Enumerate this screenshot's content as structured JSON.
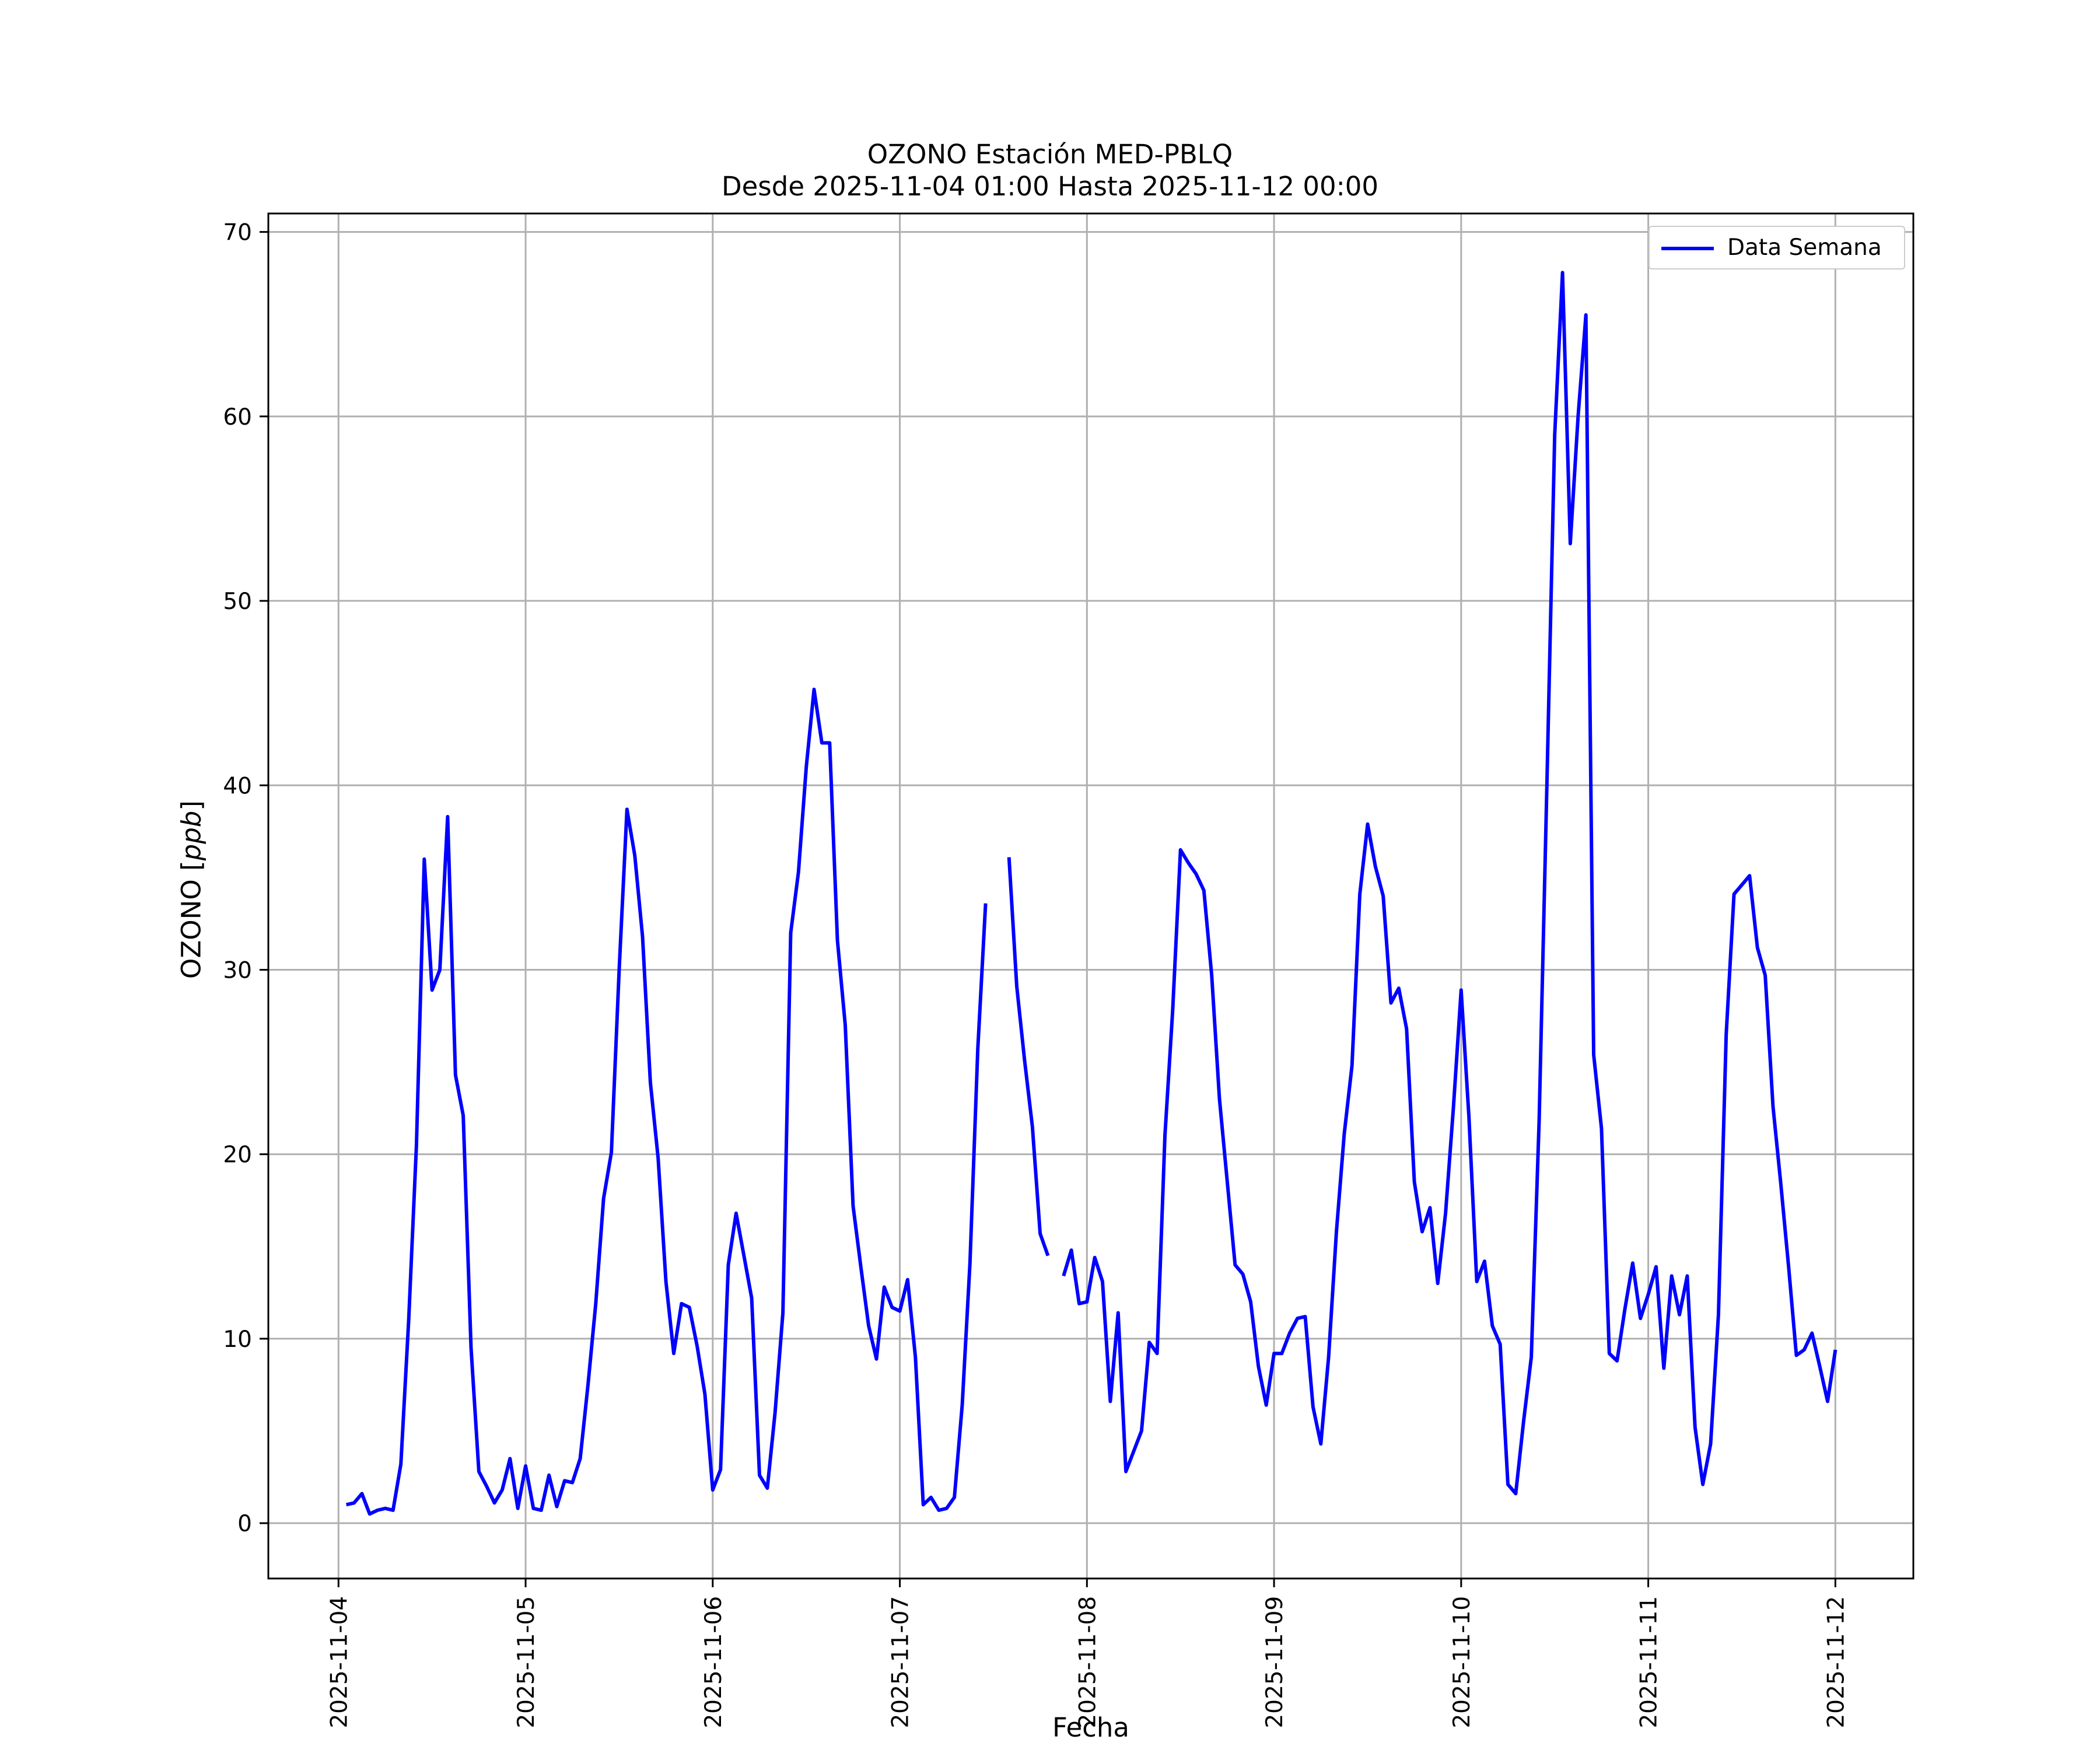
{
  "chart_data": {
    "type": "line",
    "title": "OZONO Estación MED-PBLQ",
    "subtitle": "Desde 2025-11-04 01:00 Hasta 2025-11-12 00:00",
    "xlabel": "Fecha",
    "ylabel": "OZONO",
    "ylabel_unit": "ppb",
    "xlim": [
      "2025-11-03 15:00",
      "2025-11-12 10:00"
    ],
    "ylim": [
      -3,
      71
    ],
    "xticks": [
      "2025-11-04",
      "2025-11-05",
      "2025-11-06",
      "2025-11-07",
      "2025-11-08",
      "2025-11-09",
      "2025-11-10",
      "2025-11-11",
      "2025-11-12"
    ],
    "yticks": [
      0,
      10,
      20,
      30,
      40,
      50,
      60,
      70
    ],
    "grid": true,
    "legend_position": "top-right",
    "line_color": "#0000ff",
    "series": [
      {
        "name": "Data Semana",
        "segments": [
          [
            [
              "2025-11-04 01:00",
              1.0
            ],
            [
              "2025-11-04 02:00",
              1.1
            ],
            [
              "2025-11-04 03:00",
              1.6
            ],
            [
              "2025-11-04 04:00",
              0.5
            ],
            [
              "2025-11-04 05:00",
              0.7
            ],
            [
              "2025-11-04 06:00",
              0.8
            ],
            [
              "2025-11-04 07:00",
              0.7
            ],
            [
              "2025-11-04 08:00",
              3.2
            ],
            [
              "2025-11-04 09:00",
              11.0
            ],
            [
              "2025-11-04 10:00",
              20.5
            ],
            [
              "2025-11-04 11:00",
              36.0
            ],
            [
              "2025-11-04 12:00",
              28.9
            ],
            [
              "2025-11-04 13:00",
              30.0
            ],
            [
              "2025-11-04 14:00",
              38.3
            ],
            [
              "2025-11-04 15:00",
              24.3
            ],
            [
              "2025-11-04 16:00",
              22.1
            ],
            [
              "2025-11-04 17:00",
              9.5
            ],
            [
              "2025-11-04 18:00",
              2.8
            ],
            [
              "2025-11-04 19:00",
              2.0
            ],
            [
              "2025-11-04 20:00",
              1.1
            ],
            [
              "2025-11-04 21:00",
              1.8
            ],
            [
              "2025-11-04 22:00",
              3.5
            ],
            [
              "2025-11-04 23:00",
              0.8
            ],
            [
              "2025-11-05 00:00",
              3.1
            ],
            [
              "2025-11-05 01:00",
              0.8
            ],
            [
              "2025-11-05 02:00",
              0.7
            ],
            [
              "2025-11-05 03:00",
              2.6
            ],
            [
              "2025-11-05 04:00",
              0.9
            ],
            [
              "2025-11-05 05:00",
              2.3
            ],
            [
              "2025-11-05 06:00",
              2.2
            ],
            [
              "2025-11-05 07:00",
              3.5
            ],
            [
              "2025-11-05 08:00",
              7.5
            ],
            [
              "2025-11-05 09:00",
              11.9
            ],
            [
              "2025-11-05 10:00",
              17.6
            ],
            [
              "2025-11-05 11:00",
              20.1
            ],
            [
              "2025-11-05 12:00",
              30.0
            ],
            [
              "2025-11-05 13:00",
              38.7
            ],
            [
              "2025-11-05 14:00",
              36.2
            ],
            [
              "2025-11-05 15:00",
              31.8
            ],
            [
              "2025-11-05 16:00",
              23.9
            ],
            [
              "2025-11-05 17:00",
              19.8
            ],
            [
              "2025-11-05 18:00",
              13.1
            ],
            [
              "2025-11-05 19:00",
              9.2
            ],
            [
              "2025-11-05 20:00",
              11.9
            ],
            [
              "2025-11-05 21:00",
              11.7
            ],
            [
              "2025-11-05 22:00",
              9.6
            ],
            [
              "2025-11-05 23:00",
              7.0
            ],
            [
              "2025-11-06 00:00",
              1.8
            ],
            [
              "2025-11-06 01:00",
              2.9
            ],
            [
              "2025-11-06 02:00",
              14.0
            ],
            [
              "2025-11-06 03:00",
              16.8
            ],
            [
              "2025-11-06 04:00",
              14.5
            ],
            [
              "2025-11-06 05:00",
              12.2
            ],
            [
              "2025-11-06 06:00",
              2.6
            ],
            [
              "2025-11-06 07:00",
              1.9
            ],
            [
              "2025-11-06 08:00",
              6.0
            ],
            [
              "2025-11-06 09:00",
              11.4
            ],
            [
              "2025-11-06 10:00",
              32.0
            ],
            [
              "2025-11-06 11:00",
              35.3
            ],
            [
              "2025-11-06 12:00",
              41.0
            ],
            [
              "2025-11-06 13:00",
              45.2
            ],
            [
              "2025-11-06 14:00",
              42.3
            ],
            [
              "2025-11-06 15:00",
              42.3
            ],
            [
              "2025-11-06 16:00",
              31.6
            ],
            [
              "2025-11-06 17:00",
              27.0
            ],
            [
              "2025-11-06 18:00",
              17.2
            ],
            [
              "2025-11-06 19:00",
              13.9
            ],
            [
              "2025-11-06 20:00",
              10.7
            ],
            [
              "2025-11-06 21:00",
              8.9
            ],
            [
              "2025-11-06 22:00",
              12.8
            ],
            [
              "2025-11-06 23:00",
              11.7
            ],
            [
              "2025-11-07 00:00",
              11.5
            ],
            [
              "2025-11-07 01:00",
              13.2
            ],
            [
              "2025-11-07 02:00",
              9.0
            ],
            [
              "2025-11-07 03:00",
              1.0
            ],
            [
              "2025-11-07 04:00",
              1.4
            ],
            [
              "2025-11-07 05:00",
              0.7
            ],
            [
              "2025-11-07 06:00",
              0.8
            ],
            [
              "2025-11-07 07:00",
              1.4
            ],
            [
              "2025-11-07 08:00",
              6.4
            ],
            [
              "2025-11-07 09:00",
              14.1
            ],
            [
              "2025-11-07 10:00",
              25.7
            ],
            [
              "2025-11-07 11:00",
              33.6
            ]
          ],
          [
            [
              "2025-11-07 14:00",
              36.1
            ],
            [
              "2025-11-07 15:00",
              29.1
            ],
            [
              "2025-11-07 16:00",
              25.1
            ],
            [
              "2025-11-07 17:00",
              21.5
            ],
            [
              "2025-11-07 18:00",
              15.7
            ],
            [
              "2025-11-07 19:00",
              14.5
            ]
          ],
          [
            [
              "2025-11-07 21:00",
              13.4
            ],
            [
              "2025-11-07 22:00",
              14.8
            ],
            [
              "2025-11-07 23:00",
              11.9
            ],
            [
              "2025-11-08 00:00",
              12.0
            ],
            [
              "2025-11-08 01:00",
              14.4
            ],
            [
              "2025-11-08 02:00",
              13.1
            ],
            [
              "2025-11-08 03:00",
              6.6
            ],
            [
              "2025-11-08 04:00",
              11.4
            ],
            [
              "2025-11-08 05:00",
              2.8
            ],
            [
              "2025-11-08 06:00",
              3.9
            ],
            [
              "2025-11-08 07:00",
              5.0
            ],
            [
              "2025-11-08 08:00",
              9.8
            ],
            [
              "2025-11-08 09:00",
              9.2
            ],
            [
              "2025-11-08 10:00",
              21.0
            ],
            [
              "2025-11-08 11:00",
              27.8
            ],
            [
              "2025-11-08 12:00",
              36.5
            ],
            [
              "2025-11-08 13:00",
              35.8
            ],
            [
              "2025-11-08 14:00",
              35.2
            ],
            [
              "2025-11-08 15:00",
              34.3
            ],
            [
              "2025-11-08 16:00",
              29.7
            ],
            [
              "2025-11-08 17:00",
              23.0
            ],
            [
              "2025-11-08 18:00",
              18.5
            ],
            [
              "2025-11-08 19:00",
              14.0
            ],
            [
              "2025-11-08 20:00",
              13.5
            ],
            [
              "2025-11-08 21:00",
              12.0
            ],
            [
              "2025-11-08 22:00",
              8.5
            ],
            [
              "2025-11-08 23:00",
              6.4
            ],
            [
              "2025-11-09 00:00",
              9.2
            ],
            [
              "2025-11-09 01:00",
              9.2
            ],
            [
              "2025-11-09 02:00",
              10.3
            ],
            [
              "2025-11-09 03:00",
              11.1
            ],
            [
              "2025-11-09 04:00",
              11.2
            ],
            [
              "2025-11-09 05:00",
              6.3
            ],
            [
              "2025-11-09 06:00",
              4.3
            ],
            [
              "2025-11-09 07:00",
              9.0
            ],
            [
              "2025-11-09 08:00",
              15.8
            ],
            [
              "2025-11-09 09:00",
              21.1
            ],
            [
              "2025-11-09 10:00",
              24.8
            ],
            [
              "2025-11-09 11:00",
              34.1
            ],
            [
              "2025-11-09 12:00",
              37.9
            ],
            [
              "2025-11-09 13:00",
              35.6
            ],
            [
              "2025-11-09 14:00",
              34.0
            ],
            [
              "2025-11-09 15:00",
              28.2
            ],
            [
              "2025-11-09 16:00",
              29.0
            ],
            [
              "2025-11-09 17:00",
              26.8
            ],
            [
              "2025-11-09 18:00",
              18.5
            ],
            [
              "2025-11-09 19:00",
              15.8
            ],
            [
              "2025-11-09 20:00",
              17.1
            ],
            [
              "2025-11-09 21:00",
              13.0
            ],
            [
              "2025-11-09 22:00",
              16.8
            ],
            [
              "2025-11-09 23:00",
              22.5
            ],
            [
              "2025-11-10 00:00",
              28.9
            ],
            [
              "2025-11-10 01:00",
              22.0
            ],
            [
              "2025-11-10 02:00",
              13.1
            ],
            [
              "2025-11-10 03:00",
              14.2
            ],
            [
              "2025-11-10 04:00",
              10.7
            ],
            [
              "2025-11-10 05:00",
              9.7
            ],
            [
              "2025-11-10 06:00",
              2.1
            ],
            [
              "2025-11-10 07:00",
              1.6
            ],
            [
              "2025-11-10 08:00",
              5.5
            ],
            [
              "2025-11-10 09:00",
              9.0
            ],
            [
              "2025-11-10 10:00",
              21.8
            ],
            [
              "2025-11-10 11:00",
              40.0
            ],
            [
              "2025-11-10 12:00",
              59.0
            ],
            [
              "2025-11-10 13:00",
              67.8
            ],
            [
              "2025-11-10 14:00",
              53.1
            ],
            [
              "2025-11-10 15:00",
              60.0
            ],
            [
              "2025-11-10 16:00",
              65.5
            ],
            [
              "2025-11-10 17:00",
              25.4
            ],
            [
              "2025-11-10 18:00",
              21.4
            ],
            [
              "2025-11-10 19:00",
              9.2
            ],
            [
              "2025-11-10 20:00",
              8.8
            ],
            [
              "2025-11-10 21:00",
              11.6
            ],
            [
              "2025-11-10 22:00",
              14.1
            ],
            [
              "2025-11-10 23:00",
              11.1
            ],
            [
              "2025-11-11 00:00",
              12.4
            ],
            [
              "2025-11-11 01:00",
              13.9
            ],
            [
              "2025-11-11 02:00",
              8.4
            ],
            [
              "2025-11-11 03:00",
              13.4
            ],
            [
              "2025-11-11 04:00",
              11.3
            ],
            [
              "2025-11-11 05:00",
              13.4
            ],
            [
              "2025-11-11 06:00",
              5.2
            ],
            [
              "2025-11-11 07:00",
              2.1
            ],
            [
              "2025-11-11 08:00",
              4.3
            ],
            [
              "2025-11-11 09:00",
              11.3
            ],
            [
              "2025-11-11 10:00",
              26.5
            ],
            [
              "2025-11-11 11:00",
              34.1
            ],
            [
              "2025-11-11 12:00",
              34.6
            ],
            [
              "2025-11-11 13:00",
              35.1
            ],
            [
              "2025-11-11 14:00",
              31.2
            ],
            [
              "2025-11-11 15:00",
              29.7
            ],
            [
              "2025-11-11 16:00",
              22.6
            ],
            [
              "2025-11-11 17:00",
              18.4
            ],
            [
              "2025-11-11 18:00",
              13.9
            ],
            [
              "2025-11-11 19:00",
              9.1
            ],
            [
              "2025-11-11 20:00",
              9.4
            ],
            [
              "2025-11-11 21:00",
              10.3
            ],
            [
              "2025-11-11 22:00",
              8.5
            ],
            [
              "2025-11-11 23:00",
              6.6
            ],
            [
              "2025-11-12 00:00",
              9.4
            ]
          ]
        ]
      }
    ]
  }
}
